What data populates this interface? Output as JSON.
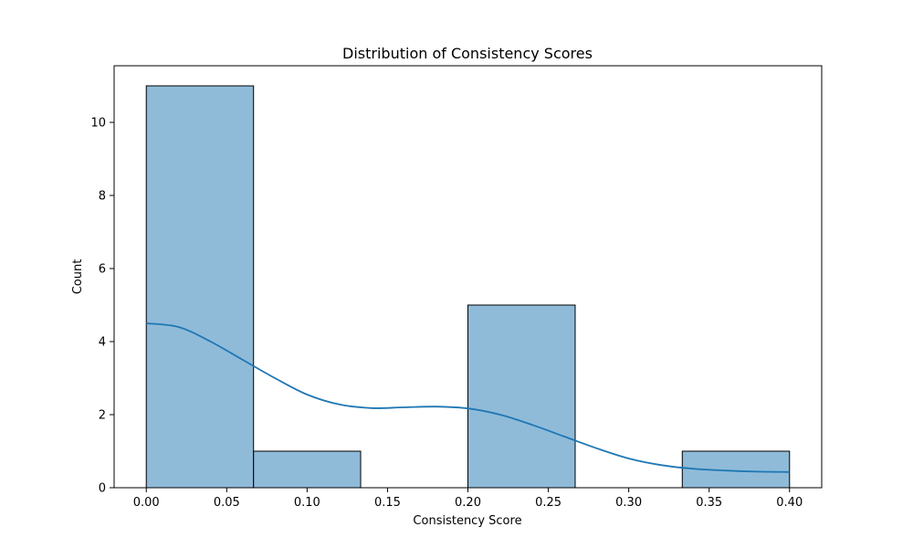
{
  "chart_data": {
    "type": "histogram",
    "title": "Distribution of Consistency Scores",
    "xlabel": "Consistency Score",
    "ylabel": "Count",
    "xlim": [
      -0.02,
      0.42
    ],
    "ylim": [
      0,
      11.55
    ],
    "x_ticks": [
      0.0,
      0.05,
      0.1,
      0.15,
      0.2,
      0.25,
      0.3,
      0.35,
      0.4
    ],
    "x_tick_labels": [
      "0.00",
      "0.05",
      "0.10",
      "0.15",
      "0.20",
      "0.25",
      "0.30",
      "0.35",
      "0.40"
    ],
    "y_ticks": [
      0,
      2,
      4,
      6,
      8,
      10
    ],
    "y_tick_labels": [
      "0",
      "2",
      "4",
      "6",
      "8",
      "10"
    ],
    "bins": [
      {
        "start": 0.0,
        "end": 0.0667,
        "count": 11
      },
      {
        "start": 0.0667,
        "end": 0.1333,
        "count": 1
      },
      {
        "start": 0.1333,
        "end": 0.2,
        "count": 0
      },
      {
        "start": 0.2,
        "end": 0.2667,
        "count": 5
      },
      {
        "start": 0.2667,
        "end": 0.3333,
        "count": 0
      },
      {
        "start": 0.3333,
        "end": 0.4,
        "count": 1
      }
    ],
    "kde": {
      "x": [
        0.0,
        0.02,
        0.04,
        0.06,
        0.08,
        0.1,
        0.12,
        0.14,
        0.16,
        0.18,
        0.2,
        0.22,
        0.24,
        0.26,
        0.28,
        0.3,
        0.32,
        0.34,
        0.36,
        0.38,
        0.4
      ],
      "y": [
        4.5,
        4.4,
        4.0,
        3.5,
        3.0,
        2.55,
        2.28,
        2.18,
        2.2,
        2.22,
        2.17,
        2.0,
        1.72,
        1.4,
        1.08,
        0.8,
        0.62,
        0.52,
        0.47,
        0.44,
        0.43
      ]
    },
    "colors": {
      "bar_fill": "#8fbbd9",
      "bar_edge": "#000000",
      "kde_line": "#1f77b4"
    },
    "grid": false,
    "legend": "none"
  }
}
